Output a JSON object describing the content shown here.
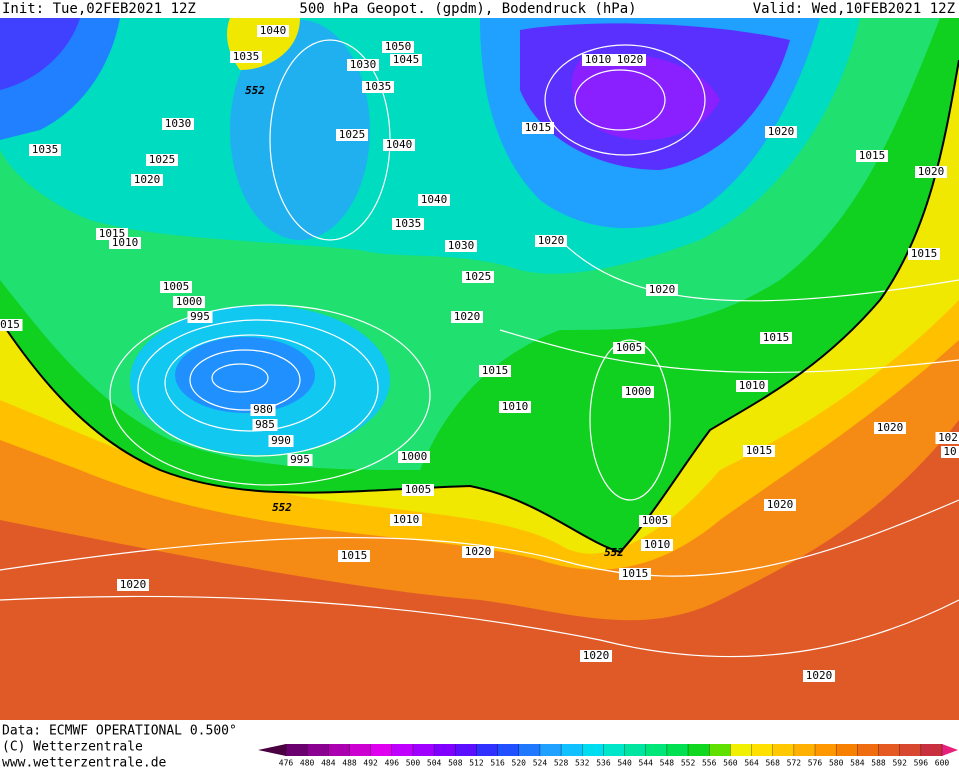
{
  "header": {
    "init": "Init: Tue,02FEB2021 12Z",
    "title": "500 hPa Geopot. (gpdm), Bodendruck (hPa)",
    "valid": "Valid: Wed,10FEB2021 12Z"
  },
  "isobar_labels": [
    "1040",
    "1035",
    "552",
    "1030",
    "1035",
    "1025",
    "1020",
    "1015",
    "1010",
    "1005",
    "1000",
    "995",
    "980",
    "985",
    "990",
    "995",
    "1000",
    "1005",
    "552",
    "1010",
    "1015",
    "1020",
    "1020",
    "015",
    "1050",
    "1045",
    "1030",
    "1035",
    "1025",
    "1040",
    "1040",
    "1035",
    "1030",
    "1025",
    "1020",
    "1015",
    "1010",
    "1015",
    "1010",
    "1020",
    "1020",
    "1015",
    "1020",
    "1015",
    "1020",
    "1020",
    "1005",
    "1015",
    "1000",
    "1010",
    "1020",
    "102",
    "10",
    "1015",
    "1020",
    "1005",
    "1010",
    "552",
    "1015",
    "1020",
    "1020"
  ],
  "footer": {
    "data": "Data: ECMWF OPERATIONAL 0.500°",
    "copyright": "(C) Wetterzentrale",
    "url": "www.wetterzentrale.de"
  },
  "colorbar": {
    "ticks": [
      476,
      480,
      484,
      488,
      492,
      496,
      500,
      504,
      508,
      512,
      516,
      520,
      524,
      528,
      532,
      536,
      540,
      544,
      548,
      552,
      556,
      560,
      564,
      568,
      572,
      576,
      580,
      584,
      588,
      592,
      596,
      600
    ],
    "colors": [
      "#4a0040",
      "#6a0070",
      "#8a0090",
      "#aa00b0",
      "#cc00d0",
      "#e000f0",
      "#c000ff",
      "#a000ff",
      "#8000ff",
      "#5a10ff",
      "#3030ff",
      "#2050ff",
      "#2078ff",
      "#20a0ff",
      "#10c0ff",
      "#00dcf0",
      "#00e6c8",
      "#00e6a0",
      "#00e678",
      "#00e050",
      "#10d820",
      "#60e000",
      "#f0f000",
      "#ffe000",
      "#ffc800",
      "#ffb000",
      "#ff9800",
      "#f88000",
      "#f06c10",
      "#e45a20",
      "#d84830",
      "#c83040",
      "#e8207c"
    ]
  }
}
